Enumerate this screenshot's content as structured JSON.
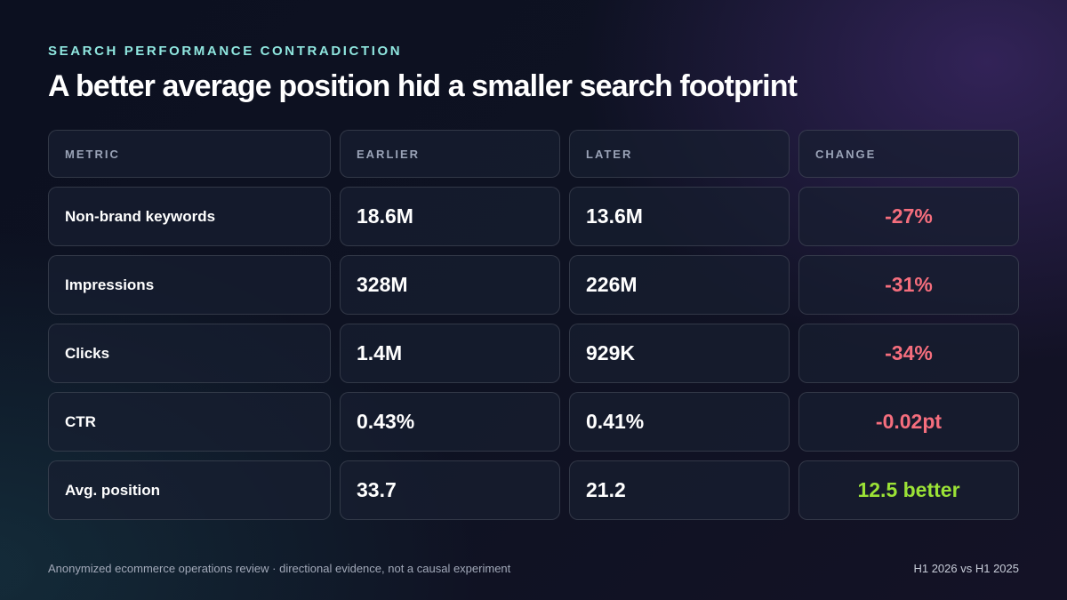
{
  "eyebrow": "SEARCH PERFORMANCE CONTRADICTION",
  "title": "A better average position hid a smaller search footprint",
  "table": {
    "headers": {
      "metric": "METRIC",
      "earlier": "EARLIER",
      "later": "LATER",
      "change": "CHANGE"
    },
    "rows": [
      {
        "metric": "Non-brand keywords",
        "earlier": "18.6M",
        "later": "13.6M",
        "change": "-27%",
        "change_status": "negative"
      },
      {
        "metric": "Impressions",
        "earlier": "328M",
        "later": "226M",
        "change": "-31%",
        "change_status": "negative"
      },
      {
        "metric": "Clicks",
        "earlier": "1.4M",
        "later": "929K",
        "change": "-34%",
        "change_status": "negative"
      },
      {
        "metric": "CTR",
        "earlier": "0.43%",
        "later": "0.41%",
        "change": "-0.02pt",
        "change_status": "negative"
      },
      {
        "metric": "Avg. position",
        "earlier": "33.7",
        "later": "21.2",
        "change": "12.5 better",
        "change_status": "positive"
      }
    ]
  },
  "footer": {
    "note": "Anonymized ecommerce operations review · directional evidence, not a causal experiment",
    "period": "H1 2026 vs H1 2025"
  },
  "colors": {
    "accent_eyebrow": "#8fe6df",
    "negative_change": "#f56e7d",
    "positive_change": "#9be236",
    "background": "#0e1222"
  }
}
